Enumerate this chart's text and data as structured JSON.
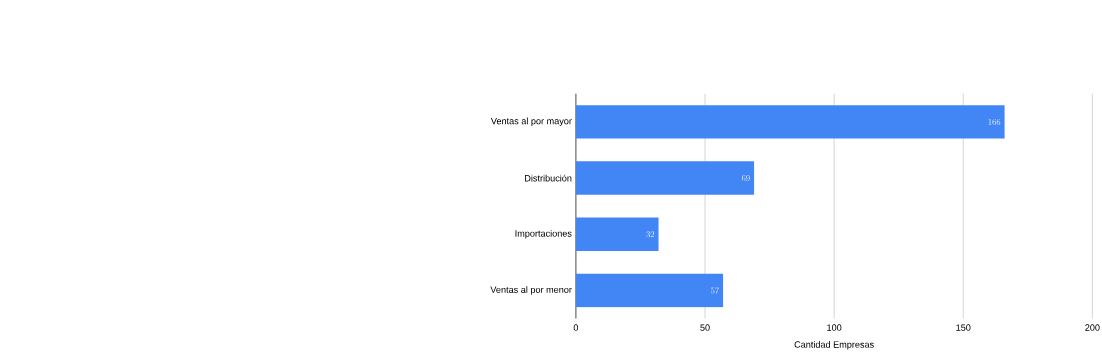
{
  "chart_data": {
    "type": "bar",
    "orientation": "horizontal",
    "xlabel": "Cantidad Empresas",
    "categories": [
      "Ventas al por mayor",
      "Distribución",
      "Importaciones",
      "Ventas al por menor"
    ],
    "values": [
      166,
      69,
      32,
      57
    ],
    "color": "#4285f4",
    "xlim": [
      0,
      200
    ],
    "xticks": [
      0,
      50,
      100,
      150,
      200
    ],
    "grid": "x",
    "data_labels": true
  }
}
